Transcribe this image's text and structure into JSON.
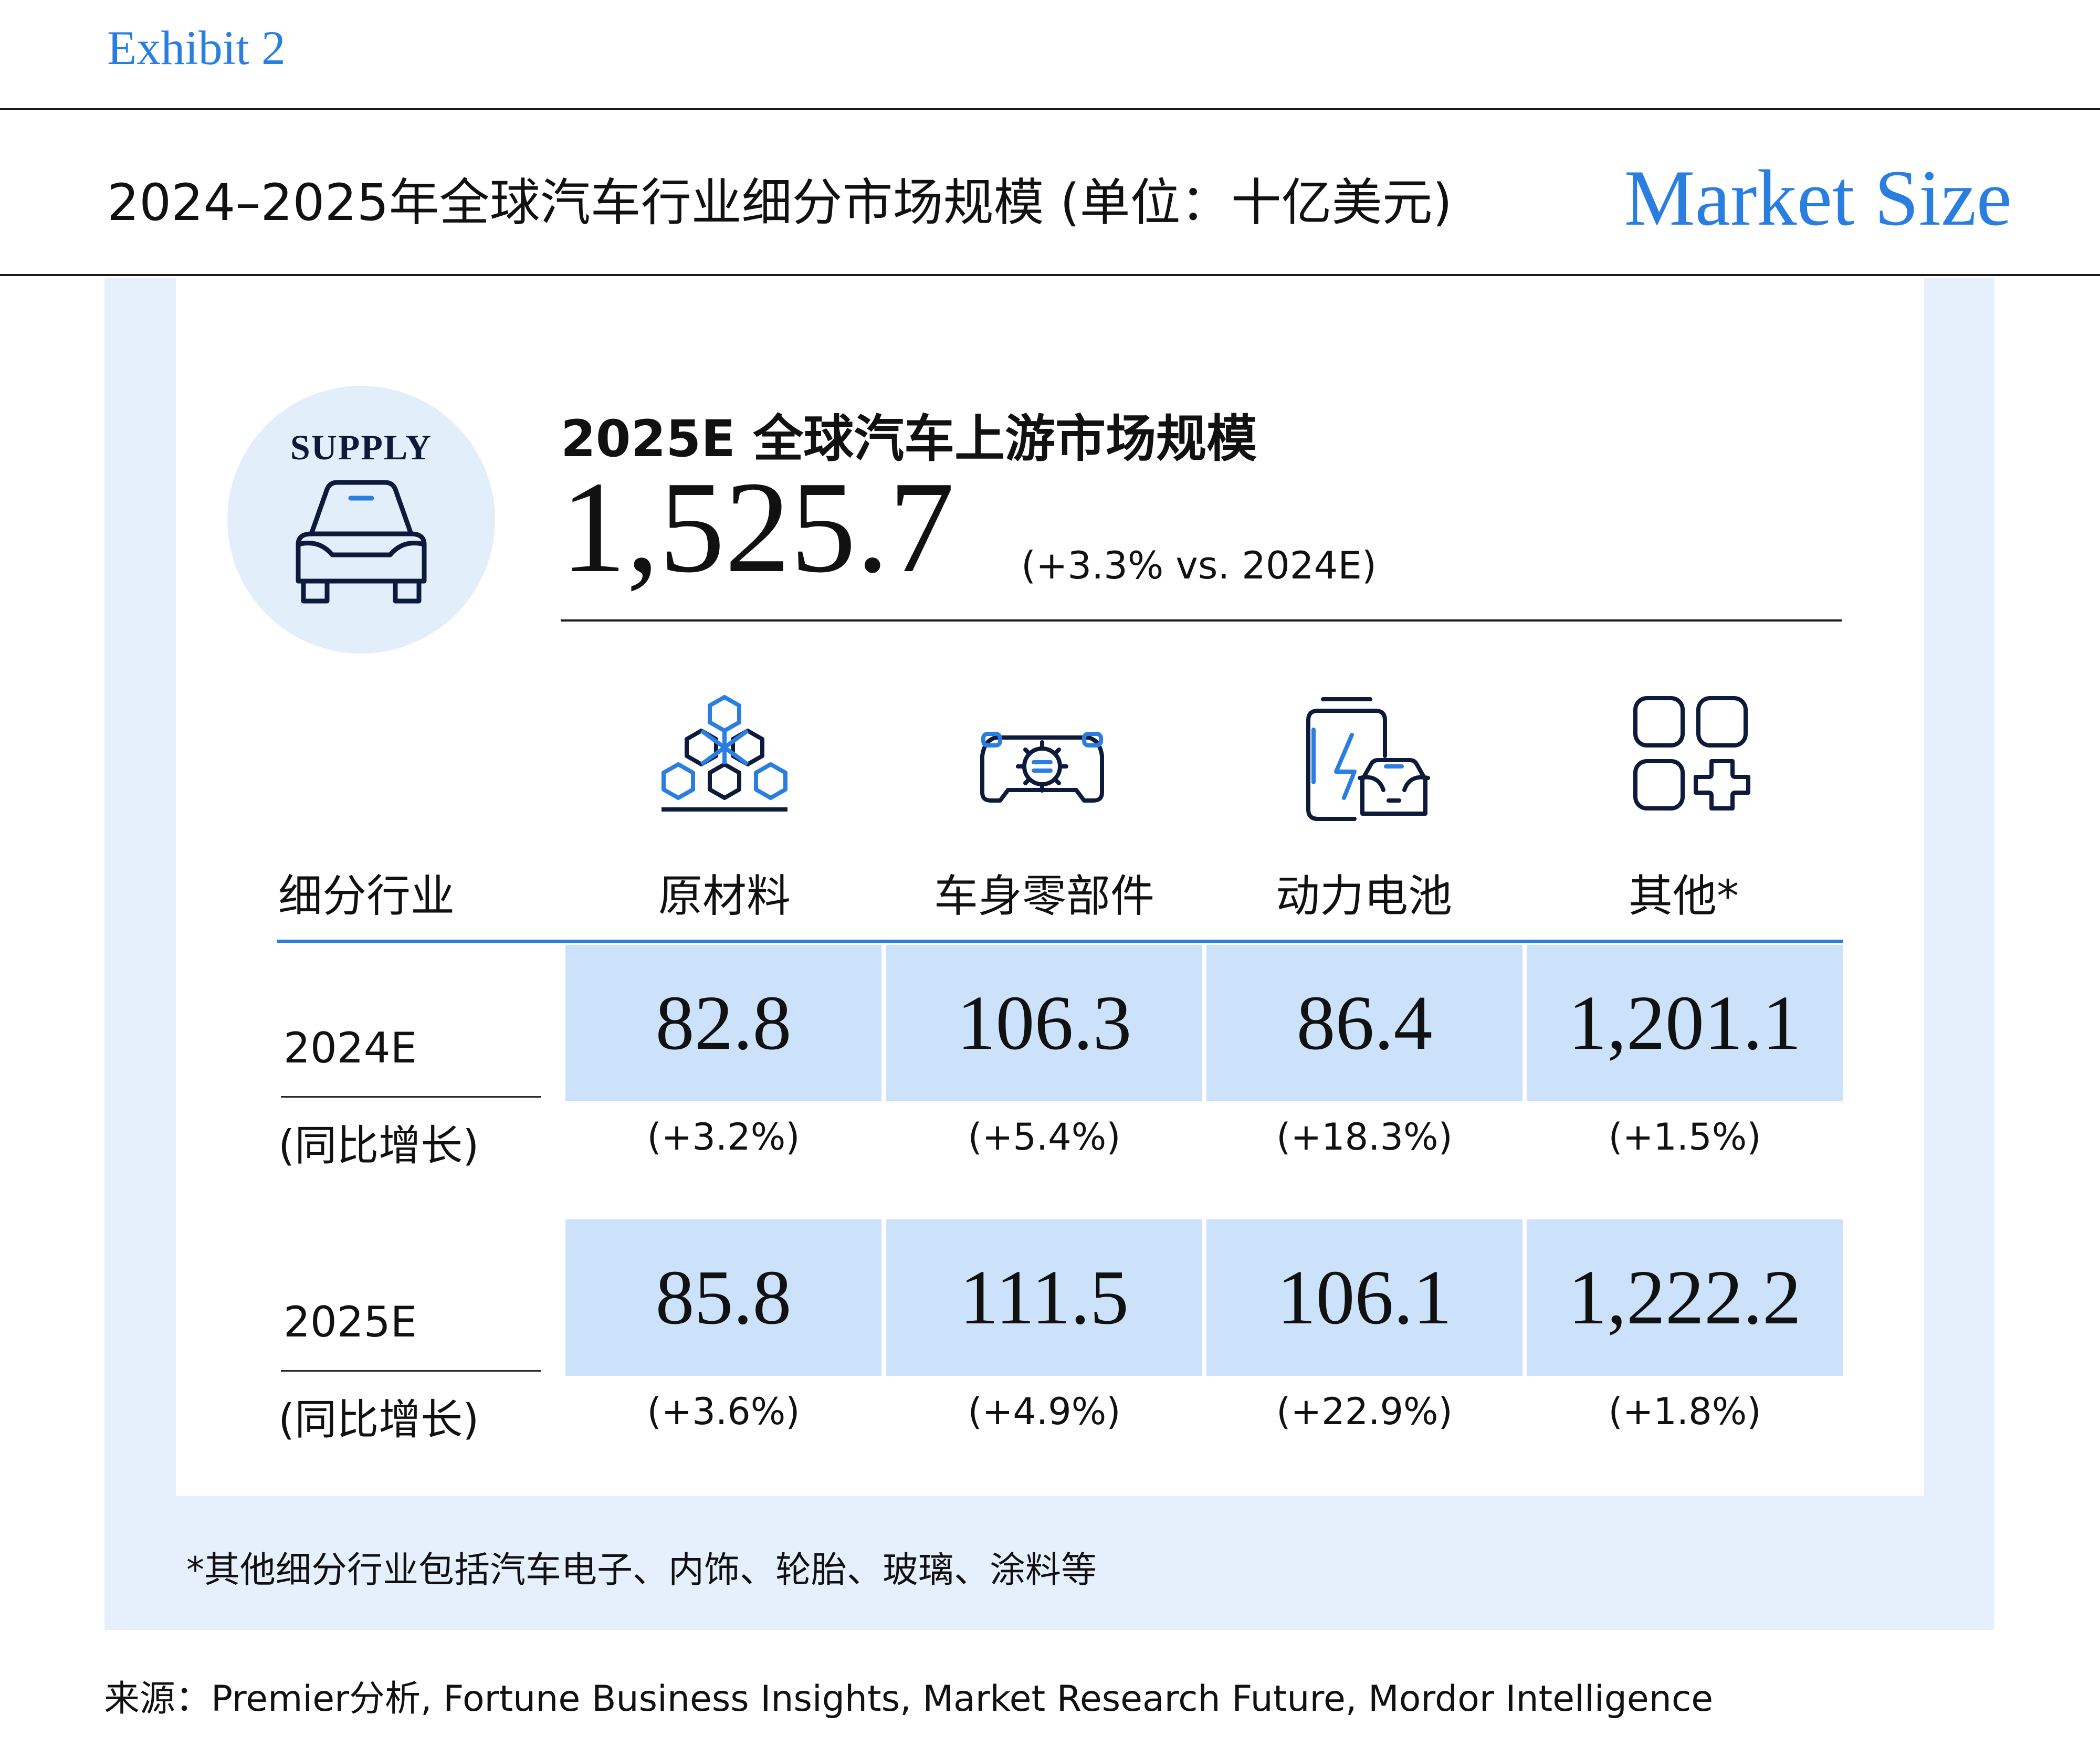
{
  "exhibit_label": "Exhibit 2",
  "page_title": "2024–2025年全球汽车行业细分市场规模 (单位：十亿美元)",
  "badge": "Market Size",
  "supply": {
    "label": "SUPPLY",
    "icon": "car-icon"
  },
  "upstream": {
    "title": "2025E 全球汽车上游市场规模",
    "value": "1,525.7",
    "change": "(+3.3% vs. 2024E)"
  },
  "table": {
    "row_header": "细分行业",
    "columns": [
      {
        "label": "原材料",
        "icon": "molecule-icon"
      },
      {
        "label": "车身零部件",
        "icon": "car-body-parts-icon"
      },
      {
        "label": "动力电池",
        "icon": "battery-ev-icon"
      },
      {
        "label": "其他*",
        "icon": "apps-plus-icon"
      }
    ],
    "rows": [
      {
        "year": "2024E",
        "sublabel": "(同比增长)",
        "values": [
          "82.8",
          "106.3",
          "86.4",
          "1,201.1"
        ],
        "growth": [
          "(+3.2%)",
          "(+5.4%)",
          "(+18.3%)",
          "(+1.5%)"
        ]
      },
      {
        "year": "2025E",
        "sublabel": "(同比增长)",
        "values": [
          "85.8",
          "111.5",
          "106.1",
          "1,222.2"
        ],
        "growth": [
          "(+3.6%)",
          "(+4.9%)",
          "(+22.9%)",
          "(+1.8%)"
        ]
      }
    ]
  },
  "footnote": "*其他细分行业包括汽车电子、内饰、轮胎、玻璃、涂料等",
  "source": "来源：Premier分析, Fortune Business Insights, Market Research Future, Mordor Intelligence",
  "colors": {
    "accent": "#2a7ee0",
    "panel": "#e6f0fc",
    "cell": "#cce1fa",
    "navy": "#0e1a3c"
  }
}
